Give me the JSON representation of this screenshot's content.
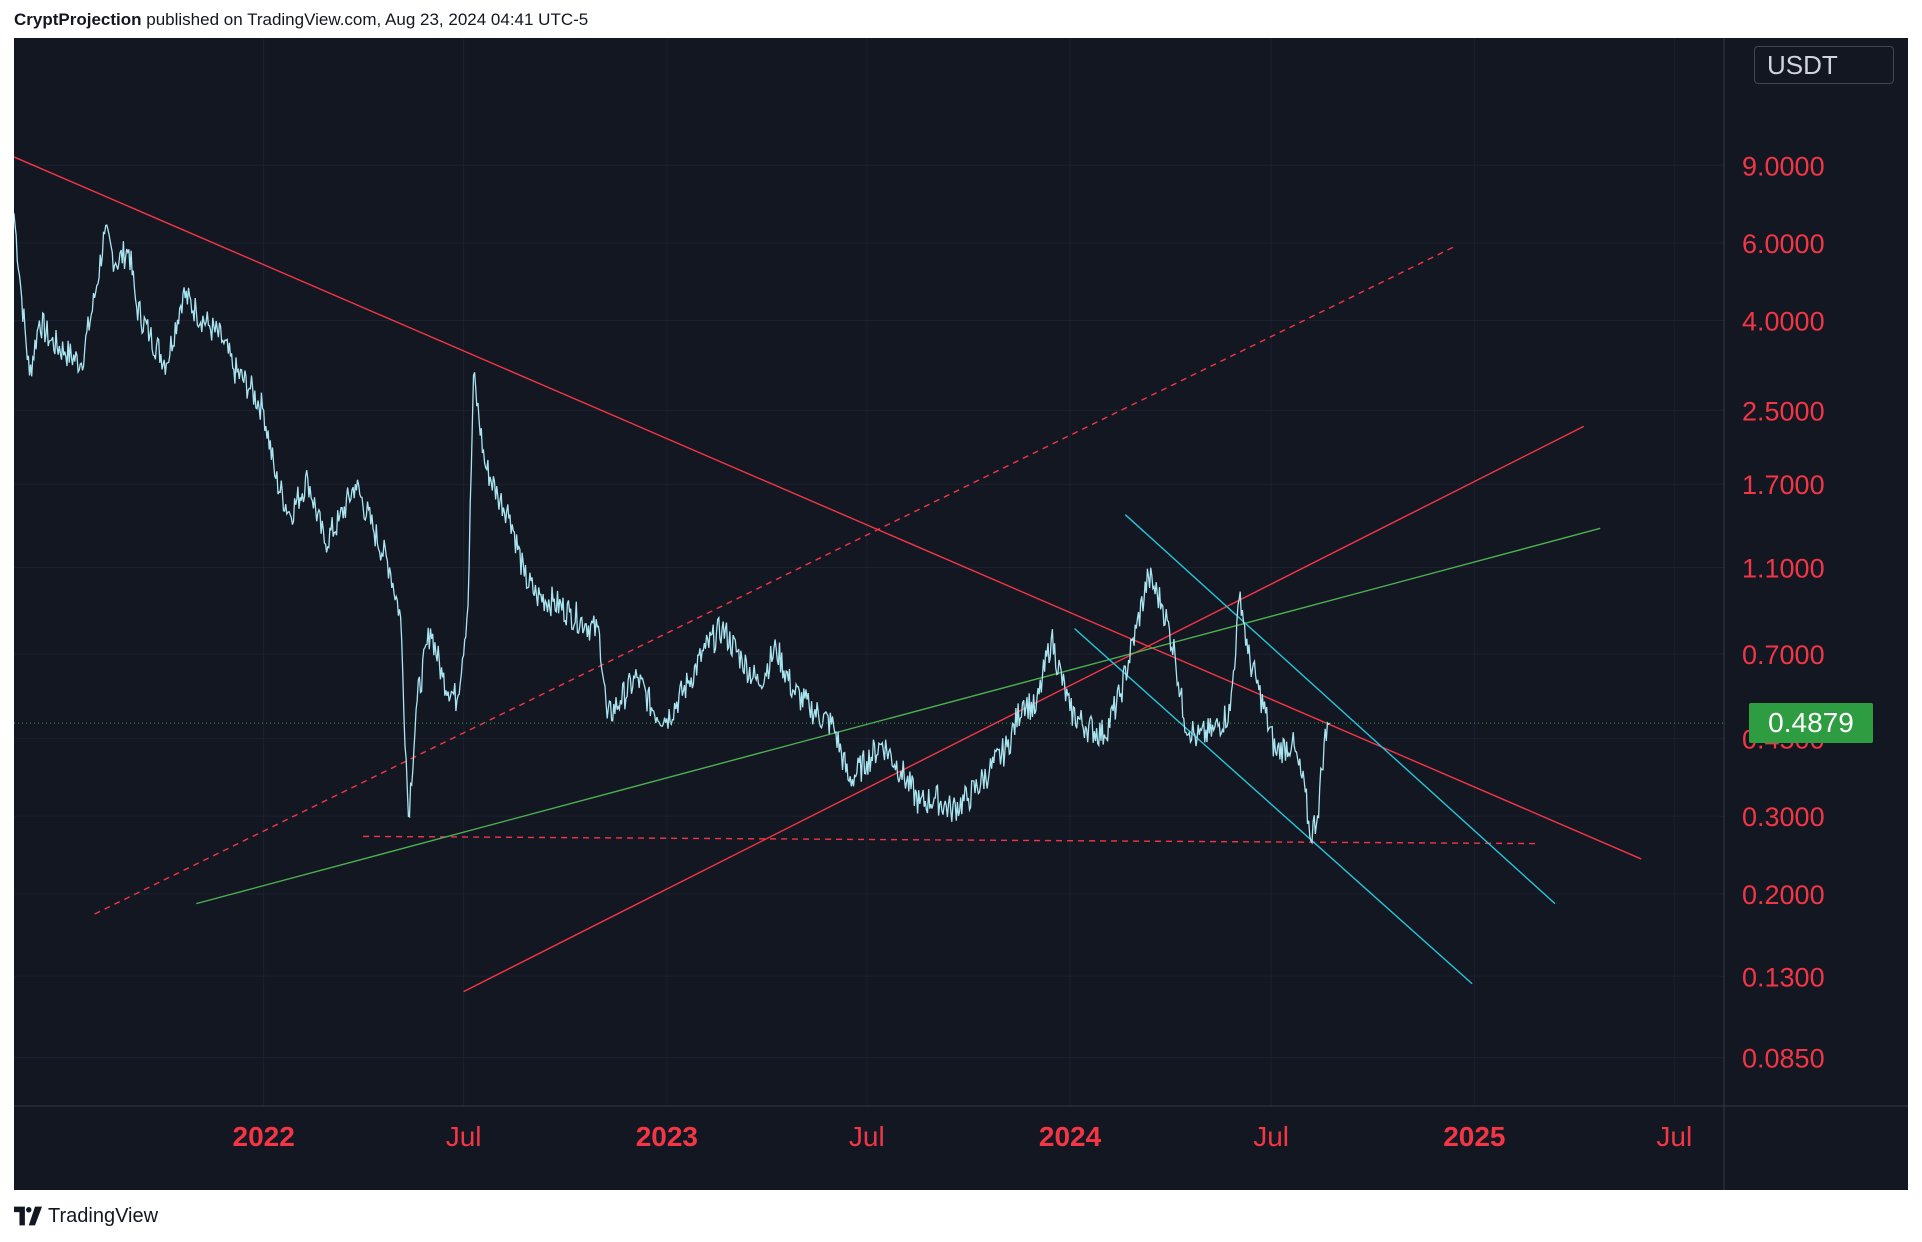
{
  "header": {
    "author": "CryptProjection",
    "text": " published on TradingView.com, Aug 23, 2024 04:41 UTC-5"
  },
  "footer": {
    "brand": "TradingView",
    "logo_icon": "tradingview-logo-icon"
  },
  "price_scale": {
    "currency": "USDT"
  },
  "current_price": {
    "label": "0.4879",
    "value": 0.4879,
    "color": "#2e9d41"
  },
  "colors": {
    "background": "#131722",
    "price_line": "#a9e5f0",
    "axis_label": "#f23645",
    "trend_red": "#f23645",
    "trend_green": "#4caf50",
    "trend_cyan": "#26c6da"
  },
  "chart_data": {
    "type": "line",
    "scale": "log",
    "x_range": [
      "2021-05-20",
      "2025-08-15"
    ],
    "y_range": [
      0.066,
      17.5
    ],
    "y_ticks": [
      {
        "label": "9.0000",
        "value": 9.0
      },
      {
        "label": "6.0000",
        "value": 6.0
      },
      {
        "label": "4.0000",
        "value": 4.0
      },
      {
        "label": "2.5000",
        "value": 2.5
      },
      {
        "label": "1.7000",
        "value": 1.7
      },
      {
        "label": "1.1000",
        "value": 1.1
      },
      {
        "label": "0.7000",
        "value": 0.7
      },
      {
        "label": "0.4500",
        "value": 0.45
      },
      {
        "label": "0.3000",
        "value": 0.3
      },
      {
        "label": "0.2000",
        "value": 0.2
      },
      {
        "label": "0.1300",
        "value": 0.13
      },
      {
        "label": "0.0850",
        "value": 0.085
      }
    ],
    "x_ticks": [
      {
        "label": "2022",
        "date": "2022-01-01",
        "bold": true
      },
      {
        "label": "Jul",
        "date": "2022-07-01",
        "bold": false
      },
      {
        "label": "2023",
        "date": "2023-01-01",
        "bold": true
      },
      {
        "label": "Jul",
        "date": "2023-07-01",
        "bold": false
      },
      {
        "label": "2024",
        "date": "2024-01-01",
        "bold": true
      },
      {
        "label": "Jul",
        "date": "2024-07-01",
        "bold": false
      },
      {
        "label": "2025",
        "date": "2025-01-01",
        "bold": true
      },
      {
        "label": "Jul",
        "date": "2025-07-01",
        "bold": false
      }
    ],
    "grid": true,
    "series": [
      {
        "points": [
          [
            "2021-05-20",
            7.0
          ],
          [
            "2021-05-27",
            4.5
          ],
          [
            "2021-06-03",
            3.0
          ],
          [
            "2021-06-12",
            4.0
          ],
          [
            "2021-06-22",
            3.6
          ],
          [
            "2021-07-05",
            3.4
          ],
          [
            "2021-07-20",
            3.2
          ],
          [
            "2021-08-01",
            4.5
          ],
          [
            "2021-08-10",
            6.3
          ],
          [
            "2021-08-20",
            5.4
          ],
          [
            "2021-09-01",
            5.8
          ],
          [
            "2021-09-08",
            4.3
          ],
          [
            "2021-09-20",
            3.7
          ],
          [
            "2021-10-05",
            3.2
          ],
          [
            "2021-10-20",
            4.6
          ],
          [
            "2021-11-01",
            4.2
          ],
          [
            "2021-11-12",
            3.9
          ],
          [
            "2021-11-25",
            3.6
          ],
          [
            "2021-12-05",
            3.1
          ],
          [
            "2021-12-20",
            2.8
          ],
          [
            "2022-01-01",
            2.5
          ],
          [
            "2022-01-12",
            1.75
          ],
          [
            "2022-01-25",
            1.45
          ],
          [
            "2022-02-10",
            1.75
          ],
          [
            "2022-02-25",
            1.25
          ],
          [
            "2022-03-10",
            1.4
          ],
          [
            "2022-03-25",
            1.7
          ],
          [
            "2022-04-10",
            1.35
          ],
          [
            "2022-04-25",
            1.1
          ],
          [
            "2022-05-05",
            0.85
          ],
          [
            "2022-05-12",
            0.3
          ],
          [
            "2022-05-20",
            0.55
          ],
          [
            "2022-06-01",
            0.8
          ],
          [
            "2022-06-12",
            0.62
          ],
          [
            "2022-06-25",
            0.55
          ],
          [
            "2022-07-05",
            0.9
          ],
          [
            "2022-07-10",
            3.0
          ],
          [
            "2022-07-20",
            1.9
          ],
          [
            "2022-08-01",
            1.6
          ],
          [
            "2022-08-12",
            1.45
          ],
          [
            "2022-08-25",
            1.05
          ],
          [
            "2022-09-05",
            0.95
          ],
          [
            "2022-09-20",
            0.92
          ],
          [
            "2022-10-05",
            0.87
          ],
          [
            "2022-10-20",
            0.82
          ],
          [
            "2022-11-01",
            0.78
          ],
          [
            "2022-11-08",
            0.5
          ],
          [
            "2022-11-20",
            0.55
          ],
          [
            "2022-12-05",
            0.62
          ],
          [
            "2022-12-20",
            0.52
          ],
          [
            "2023-01-01",
            0.5
          ],
          [
            "2023-01-20",
            0.6
          ],
          [
            "2023-02-05",
            0.72
          ],
          [
            "2023-02-20",
            0.8
          ],
          [
            "2023-03-10",
            0.68
          ],
          [
            "2023-03-25",
            0.6
          ],
          [
            "2023-04-10",
            0.72
          ],
          [
            "2023-04-25",
            0.58
          ],
          [
            "2023-05-10",
            0.53
          ],
          [
            "2023-06-01",
            0.48
          ],
          [
            "2023-06-15",
            0.36
          ],
          [
            "2023-07-01",
            0.4
          ],
          [
            "2023-07-15",
            0.44
          ],
          [
            "2023-08-01",
            0.38
          ],
          [
            "2023-08-18",
            0.32
          ],
          [
            "2023-09-01",
            0.33
          ],
          [
            "2023-09-15",
            0.31
          ],
          [
            "2023-10-01",
            0.33
          ],
          [
            "2023-10-20",
            0.38
          ],
          [
            "2023-11-05",
            0.43
          ],
          [
            "2023-11-20",
            0.55
          ],
          [
            "2023-12-01",
            0.52
          ],
          [
            "2023-12-15",
            0.76
          ],
          [
            "2024-01-01",
            0.52
          ],
          [
            "2024-01-15",
            0.48
          ],
          [
            "2024-02-01",
            0.46
          ],
          [
            "2024-02-15",
            0.56
          ],
          [
            "2024-03-01",
            0.8
          ],
          [
            "2024-03-12",
            1.05
          ],
          [
            "2024-03-25",
            0.9
          ],
          [
            "2024-04-05",
            0.7
          ],
          [
            "2024-04-13",
            0.5
          ],
          [
            "2024-04-25",
            0.45
          ],
          [
            "2024-05-10",
            0.47
          ],
          [
            "2024-05-25",
            0.52
          ],
          [
            "2024-06-03",
            0.97
          ],
          [
            "2024-06-10",
            0.7
          ],
          [
            "2024-06-20",
            0.58
          ],
          [
            "2024-07-05",
            0.42
          ],
          [
            "2024-07-20",
            0.44
          ],
          [
            "2024-08-01",
            0.34
          ],
          [
            "2024-08-05",
            0.27
          ],
          [
            "2024-08-12",
            0.3
          ],
          [
            "2024-08-18",
            0.44
          ],
          [
            "2024-08-23",
            0.4879
          ]
        ]
      }
    ],
    "trendlines": [
      {
        "color": "#f23645",
        "dashed": false,
        "from": [
          "2021-05-20",
          9.4
        ],
        "to": [
          "2025-06-01",
          0.24
        ]
      },
      {
        "color": "#f23645",
        "dashed": true,
        "from": [
          "2021-08-01",
          0.18
        ],
        "to": [
          "2024-12-15",
          5.9
        ]
      },
      {
        "color": "#f23645",
        "dashed": false,
        "from": [
          "2022-07-01",
          0.12
        ],
        "to": [
          "2025-04-10",
          2.3
        ]
      },
      {
        "color": "#f23645",
        "dashed": true,
        "from": [
          "2022-04-01",
          0.27
        ],
        "to": [
          "2025-03-01",
          0.26
        ]
      },
      {
        "color": "#4caf50",
        "dashed": false,
        "from": [
          "2021-11-01",
          0.19
        ],
        "to": [
          "2025-04-25",
          1.35
        ]
      },
      {
        "color": "#26c6da",
        "dashed": false,
        "from": [
          "2024-02-20",
          1.45
        ],
        "to": [
          "2025-03-15",
          0.19
        ]
      },
      {
        "color": "#26c6da",
        "dashed": false,
        "from": [
          "2024-01-05",
          0.8
        ],
        "to": [
          "2024-12-30",
          0.125
        ]
      }
    ]
  }
}
